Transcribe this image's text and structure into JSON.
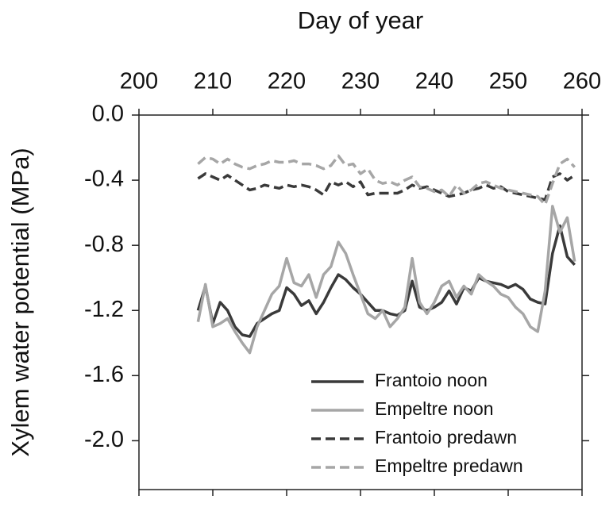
{
  "chart_data": {
    "type": "line",
    "xlabel": "Day of year",
    "ylabel": "Xylem water potential (MPa)",
    "x": [
      208,
      209,
      210,
      211,
      212,
      213,
      214,
      215,
      216,
      217,
      218,
      219,
      220,
      221,
      222,
      223,
      224,
      225,
      226,
      227,
      228,
      229,
      230,
      231,
      232,
      233,
      234,
      235,
      236,
      237,
      238,
      239,
      240,
      241,
      242,
      243,
      244,
      245,
      246,
      247,
      248,
      249,
      250,
      251,
      252,
      253,
      254,
      255,
      256,
      257,
      258,
      259
    ],
    "xlim": [
      200,
      260
    ],
    "xticks": [
      200,
      210,
      220,
      230,
      240,
      250,
      260
    ],
    "ylim": [
      -2.3,
      0
    ],
    "yticks": [
      {
        "value": 0,
        "label": "0.0"
      },
      -0.4,
      -0.8,
      -1.2,
      -1.6,
      {
        "value": -2,
        "label": "-2.0"
      }
    ],
    "legend": "lower right",
    "series": [
      {
        "name": "Frantoio noon",
        "color": "#3a3a3a",
        "dashed": false,
        "values": [
          -1.2,
          -1.05,
          -1.28,
          -1.15,
          -1.2,
          -1.3,
          -1.35,
          -1.36,
          -1.28,
          -1.25,
          -1.22,
          -1.2,
          -1.06,
          -1.1,
          -1.17,
          -1.14,
          -1.22,
          -1.15,
          -1.06,
          -0.98,
          -1.01,
          -1.06,
          -1.1,
          -1.15,
          -1.2,
          -1.2,
          -1.22,
          -1.23,
          -1.2,
          -1.02,
          -1.18,
          -1.2,
          -1.18,
          -1.15,
          -1.08,
          -1.16,
          -1.06,
          -1.08,
          -1.0,
          -1.02,
          -1.03,
          -1.04,
          -1.06,
          -1.04,
          -1.07,
          -1.13,
          -1.15,
          -1.16,
          -0.85,
          -0.68,
          -0.87,
          -0.92
        ]
      },
      {
        "name": "Empeltre noon",
        "color": "#a6a6a6",
        "dashed": false,
        "values": [
          -1.27,
          -1.04,
          -1.3,
          -1.28,
          -1.25,
          -1.33,
          -1.4,
          -1.46,
          -1.3,
          -1.2,
          -1.1,
          -1.05,
          -0.88,
          -1.03,
          -1.05,
          -0.98,
          -1.12,
          -0.98,
          -0.93,
          -0.78,
          -0.85,
          -0.98,
          -1.1,
          -1.22,
          -1.25,
          -1.2,
          -1.3,
          -1.25,
          -1.18,
          -0.88,
          -1.15,
          -1.22,
          -1.15,
          -1.05,
          -1.02,
          -1.12,
          -1.05,
          -1.1,
          -0.98,
          -1.02,
          -1.05,
          -1.1,
          -1.12,
          -1.18,
          -1.22,
          -1.3,
          -1.33,
          -1.08,
          -0.56,
          -0.72,
          -0.63,
          -0.9
        ]
      },
      {
        "name": "Frantoio predawn",
        "color": "#3a3a3a",
        "dashed": true,
        "values": [
          -0.39,
          -0.36,
          -0.38,
          -0.4,
          -0.37,
          -0.4,
          -0.43,
          -0.46,
          -0.45,
          -0.43,
          -0.44,
          -0.45,
          -0.43,
          -0.44,
          -0.43,
          -0.44,
          -0.46,
          -0.49,
          -0.41,
          -0.43,
          -0.41,
          -0.44,
          -0.41,
          -0.49,
          -0.48,
          -0.48,
          -0.48,
          -0.48,
          -0.46,
          -0.43,
          -0.45,
          -0.44,
          -0.46,
          -0.48,
          -0.5,
          -0.49,
          -0.48,
          -0.46,
          -0.45,
          -0.43,
          -0.45,
          -0.44,
          -0.47,
          -0.48,
          -0.49,
          -0.5,
          -0.51,
          -0.52,
          -0.38,
          -0.36,
          -0.4,
          -0.37
        ]
      },
      {
        "name": "Empeltre predawn",
        "color": "#a6a6a6",
        "dashed": true,
        "values": [
          -0.3,
          -0.26,
          -0.27,
          -0.3,
          -0.27,
          -0.3,
          -0.32,
          -0.33,
          -0.31,
          -0.3,
          -0.28,
          -0.29,
          -0.29,
          -0.28,
          -0.3,
          -0.3,
          -0.31,
          -0.33,
          -0.31,
          -0.25,
          -0.31,
          -0.3,
          -0.36,
          -0.33,
          -0.4,
          -0.42,
          -0.41,
          -0.43,
          -0.4,
          -0.38,
          -0.44,
          -0.45,
          -0.47,
          -0.46,
          -0.5,
          -0.43,
          -0.48,
          -0.46,
          -0.42,
          -0.41,
          -0.43,
          -0.45,
          -0.46,
          -0.47,
          -0.48,
          -0.49,
          -0.5,
          -0.55,
          -0.42,
          -0.3,
          -0.27,
          -0.32
        ]
      }
    ]
  }
}
